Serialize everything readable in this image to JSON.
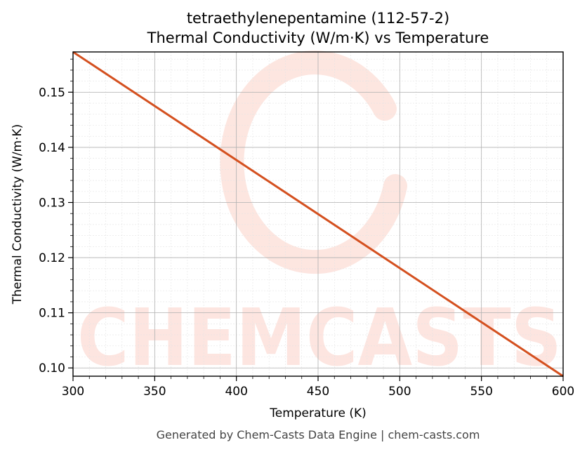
{
  "chart_data": {
    "type": "line",
    "title": "tetraethylenepentamine (112-57-2)",
    "subtitle": "Thermal Conductivity (W/m·K) vs Temperature",
    "xlabel": "Temperature (K)",
    "ylabel": "Thermal Conductivity (W/m·K)",
    "xlim": [
      300,
      600
    ],
    "ylim": [
      0.0985,
      0.1573
    ],
    "xticks": [
      300,
      350,
      400,
      450,
      500,
      550,
      600
    ],
    "yticks": [
      0.1,
      0.11,
      0.12,
      0.13,
      0.14,
      0.15
    ],
    "xtick_labels": [
      "300",
      "350",
      "400",
      "450",
      "500",
      "550",
      "600"
    ],
    "ytick_labels": [
      "0.10",
      "0.11",
      "0.12",
      "0.13",
      "0.14",
      "0.15"
    ],
    "grid": true,
    "series": [
      {
        "color": "#d4501f",
        "x": [
          300,
          600
        ],
        "y": [
          0.1573,
          0.0985
        ]
      }
    ]
  },
  "watermark": "CHEMCASTS",
  "footer": "Generated by Chem-Casts Data Engine | chem-casts.com"
}
